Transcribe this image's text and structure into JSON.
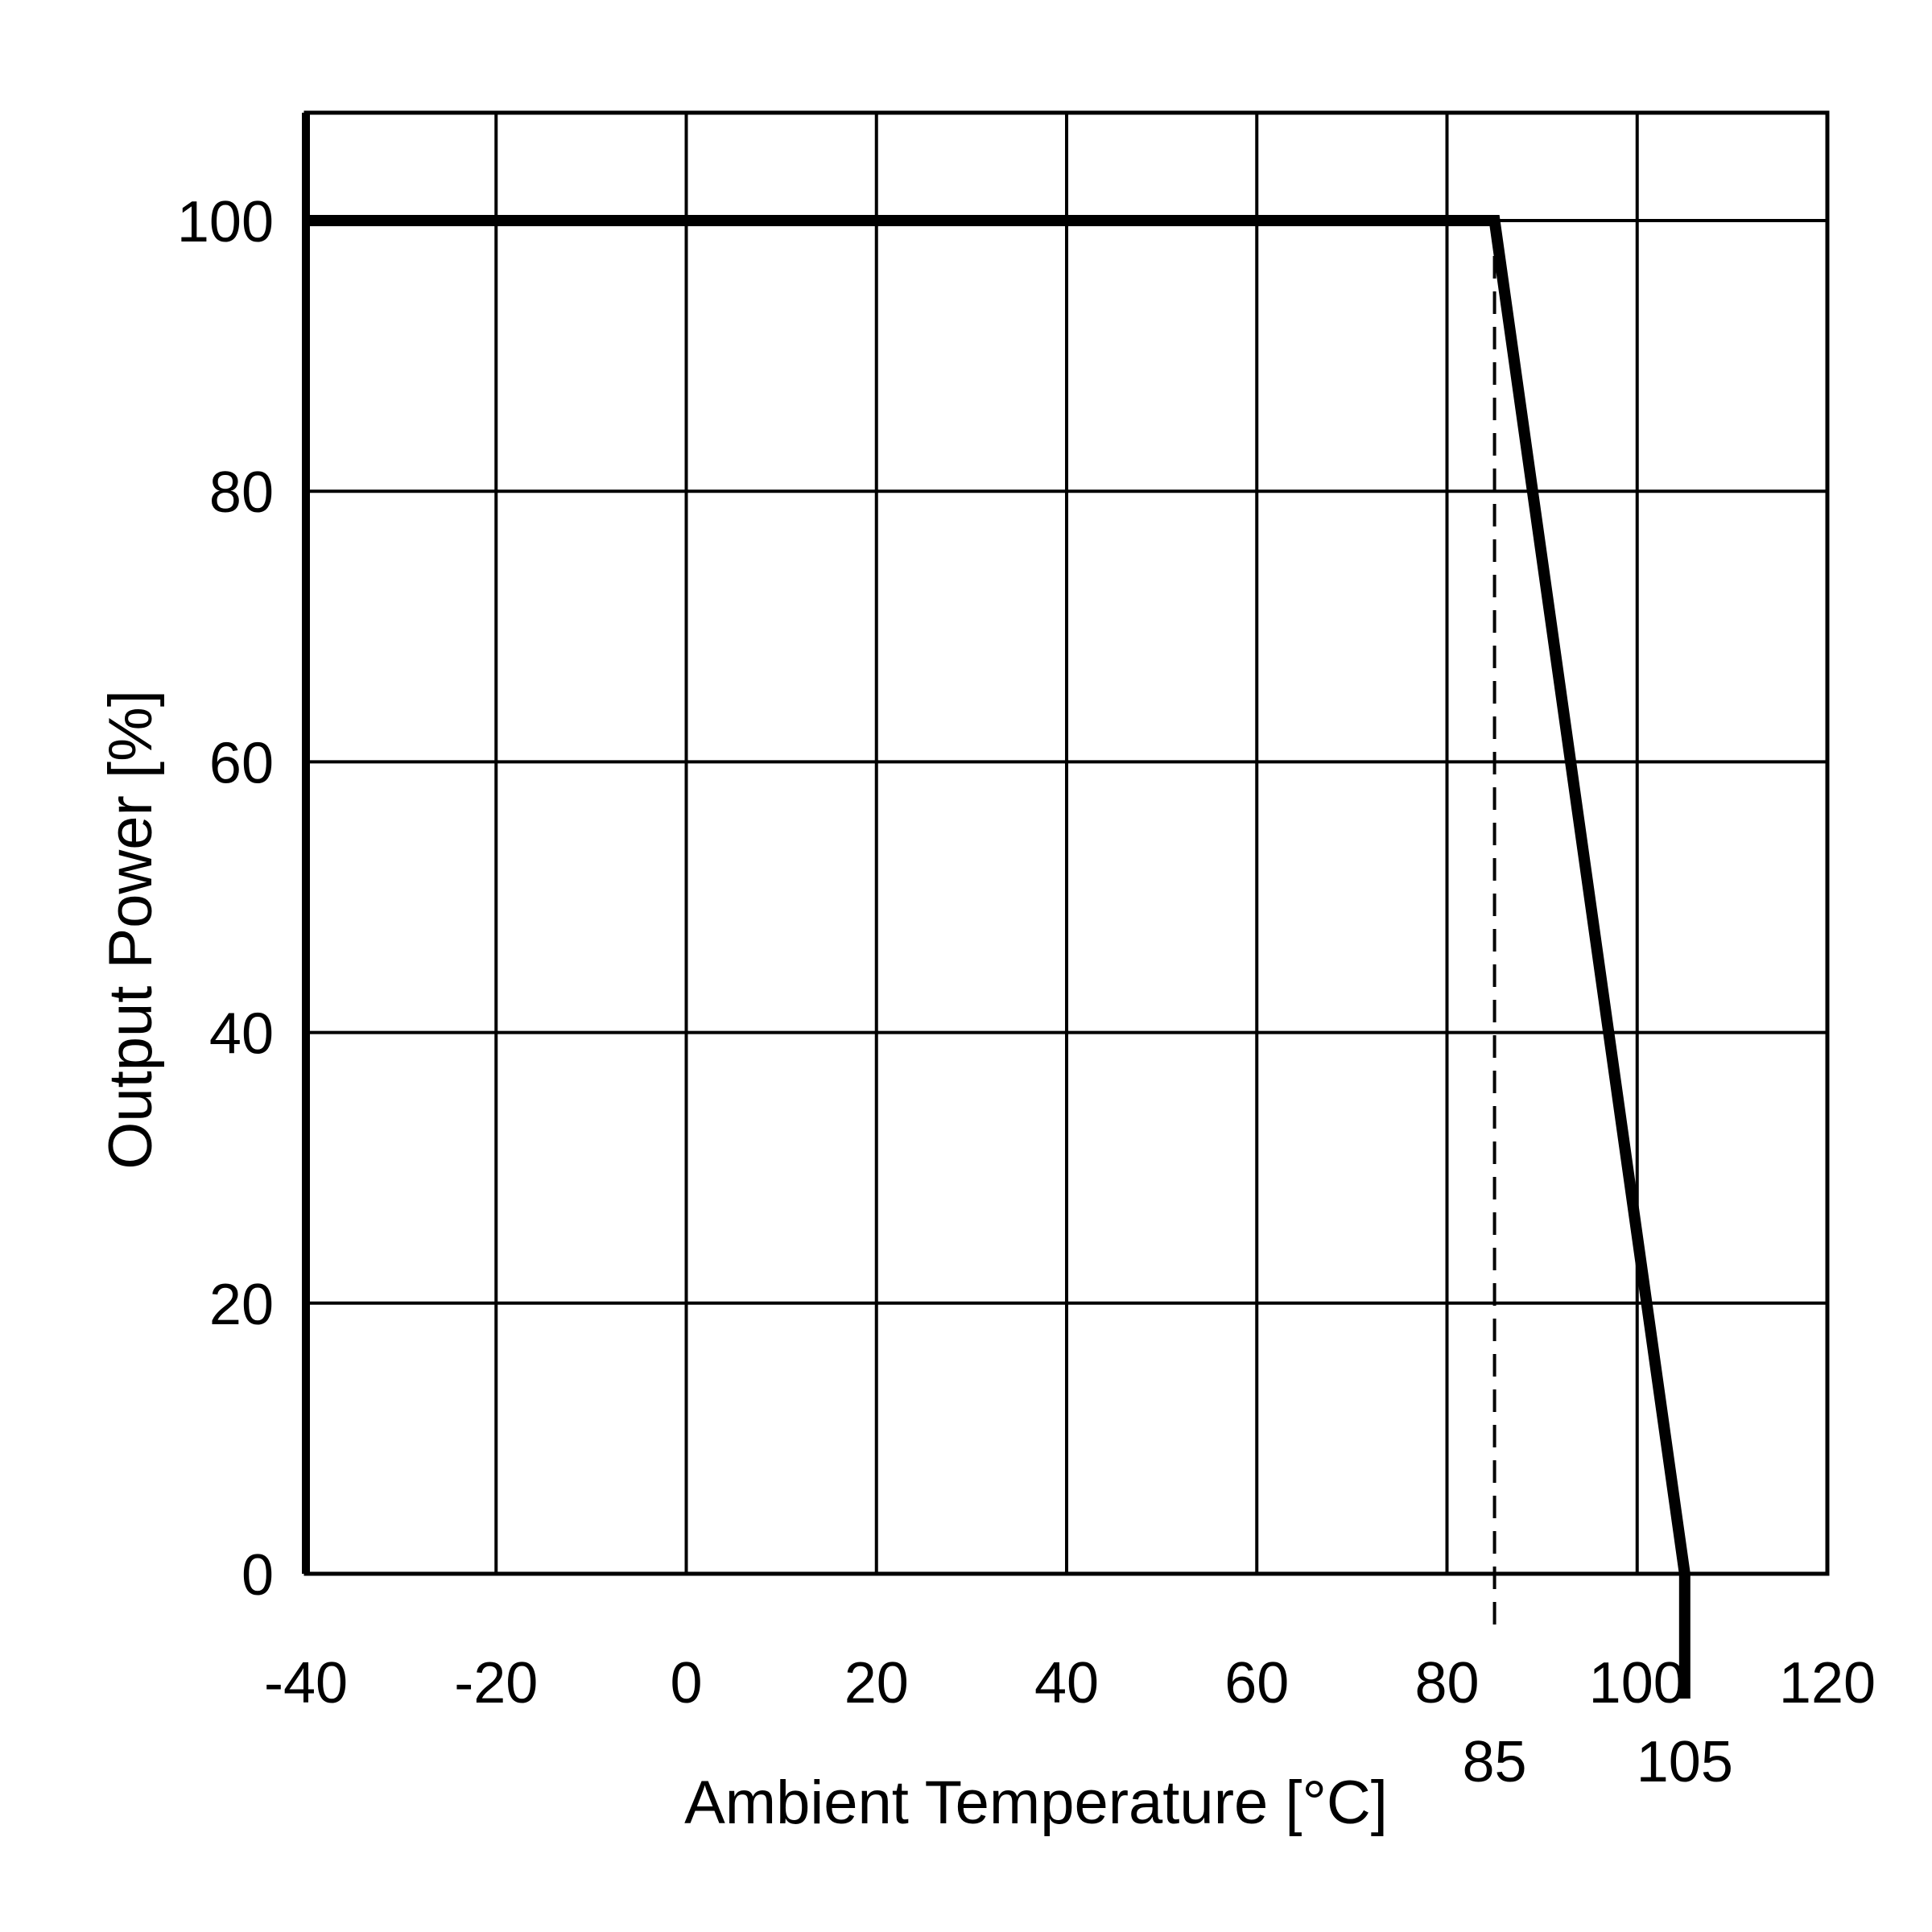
{
  "chart_data": {
    "type": "line",
    "title": "",
    "xlabel": "Ambient Temperature [°C]",
    "ylabel": "Output Power [%]",
    "xlim": [
      -40,
      120
    ],
    "ylim": [
      0,
      108
    ],
    "grid": true,
    "x_ticks": [
      -40,
      -20,
      0,
      20,
      40,
      60,
      80,
      100,
      120
    ],
    "x_tick_labels": [
      "-40",
      "-20",
      "0",
      "20",
      "40",
      "60",
      "80",
      "100",
      "120"
    ],
    "y_ticks": [
      0,
      20,
      40,
      60,
      80,
      100
    ],
    "y_tick_labels": [
      "0",
      "20",
      "40",
      "60",
      "80",
      "100"
    ],
    "annotations": [
      {
        "x": 85,
        "label": "85",
        "style": "dashed"
      },
      {
        "x": 105,
        "label": "105",
        "style": "solid"
      }
    ],
    "series": [
      {
        "points": [
          {
            "x": -40,
            "y": 100
          },
          {
            "x": 85,
            "y": 100
          },
          {
            "x": 105,
            "y": 0
          }
        ]
      }
    ],
    "colors": {
      "line": "#000000",
      "grid": "#000000",
      "background": "#ffffff"
    }
  }
}
